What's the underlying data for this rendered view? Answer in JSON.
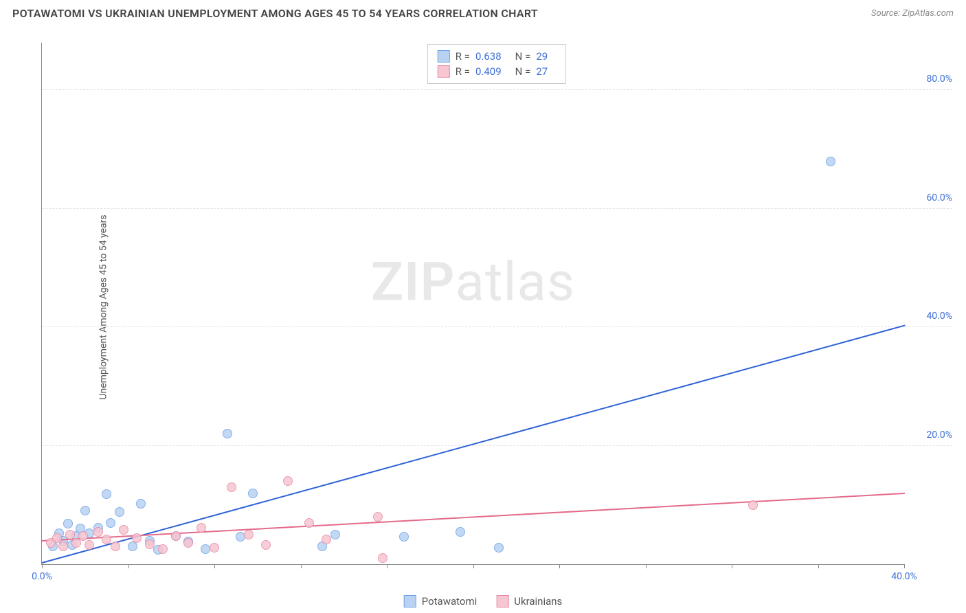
{
  "title": "POTAWATOMI VS UKRAINIAN UNEMPLOYMENT AMONG AGES 45 TO 54 YEARS CORRELATION CHART",
  "source": "Source: ZipAtlas.com",
  "watermark_bold": "ZIP",
  "watermark_light": "atlas",
  "chart": {
    "type": "scatter",
    "ylabel": "Unemployment Among Ages 45 to 54 years",
    "xlim": [
      0,
      40
    ],
    "ylim": [
      0,
      88
    ],
    "x_ticks": [
      0,
      4,
      8,
      12,
      16,
      20,
      24,
      28,
      32,
      36,
      40
    ],
    "x_tick_labels": {
      "0": "0.0%",
      "40": "40.0%"
    },
    "y_ticks": [
      20,
      40,
      60,
      80
    ],
    "y_tick_labels": {
      "20": "20.0%",
      "40": "40.0%",
      "60": "60.0%",
      "80": "80.0%"
    },
    "grid_color": "#e2e2e2",
    "axis_color": "#888888",
    "background_color": "#ffffff",
    "point_radius": 7,
    "series": [
      {
        "name": "Potawatomi",
        "fill": "#b9d2f2",
        "stroke": "#6fa3e8",
        "R": "0.638",
        "N": "29",
        "trend": {
          "x1": 0,
          "y1": 0.5,
          "x2": 40,
          "y2": 40.5,
          "color": "#2f63d6",
          "width": 2
        },
        "points": [
          [
            0.5,
            3.0
          ],
          [
            0.8,
            5.2
          ],
          [
            1.0,
            4.0
          ],
          [
            1.2,
            6.8
          ],
          [
            1.4,
            3.2
          ],
          [
            1.6,
            4.8
          ],
          [
            1.8,
            6.0
          ],
          [
            2.0,
            9.0
          ],
          [
            2.2,
            5.2
          ],
          [
            2.6,
            6.2
          ],
          [
            3.0,
            11.8
          ],
          [
            3.2,
            7.0
          ],
          [
            3.6,
            8.8
          ],
          [
            4.2,
            3.0
          ],
          [
            4.6,
            10.2
          ],
          [
            5.0,
            4.0
          ],
          [
            5.4,
            2.4
          ],
          [
            6.2,
            4.8
          ],
          [
            6.8,
            3.8
          ],
          [
            7.6,
            2.6
          ],
          [
            8.6,
            22.0
          ],
          [
            9.2,
            4.6
          ],
          [
            9.8,
            12.0
          ],
          [
            13.0,
            3.0
          ],
          [
            13.6,
            5.0
          ],
          [
            16.8,
            4.6
          ],
          [
            19.4,
            5.4
          ],
          [
            21.2,
            2.8
          ],
          [
            36.6,
            68.0
          ]
        ]
      },
      {
        "name": "Ukrainians",
        "fill": "#f6c6d1",
        "stroke": "#e98ba3",
        "R": "0.409",
        "N": "27",
        "trend": {
          "x1": 0,
          "y1": 4.2,
          "x2": 40,
          "y2": 12.2,
          "color": "#e46a8a",
          "width": 2
        },
        "points": [
          [
            0.4,
            3.6
          ],
          [
            0.7,
            4.4
          ],
          [
            1.0,
            3.0
          ],
          [
            1.3,
            5.0
          ],
          [
            1.6,
            3.6
          ],
          [
            1.9,
            4.8
          ],
          [
            2.2,
            3.2
          ],
          [
            2.6,
            5.4
          ],
          [
            3.0,
            4.2
          ],
          [
            3.4,
            3.0
          ],
          [
            3.8,
            5.8
          ],
          [
            4.4,
            4.4
          ],
          [
            5.0,
            3.4
          ],
          [
            5.6,
            2.6
          ],
          [
            6.2,
            4.8
          ],
          [
            6.8,
            3.6
          ],
          [
            7.4,
            6.2
          ],
          [
            8.0,
            2.8
          ],
          [
            8.8,
            13.0
          ],
          [
            9.6,
            5.0
          ],
          [
            10.4,
            3.2
          ],
          [
            11.4,
            14.0
          ],
          [
            12.4,
            7.0
          ],
          [
            13.2,
            4.2
          ],
          [
            15.6,
            8.0
          ],
          [
            15.8,
            1.0
          ],
          [
            33.0,
            10.0
          ]
        ]
      }
    ]
  },
  "legend_bottom": [
    {
      "label": "Potawatomi",
      "fill": "#b9d2f2",
      "stroke": "#6fa3e8"
    },
    {
      "label": "Ukrainians",
      "fill": "#f6c6d1",
      "stroke": "#e98ba3"
    }
  ]
}
